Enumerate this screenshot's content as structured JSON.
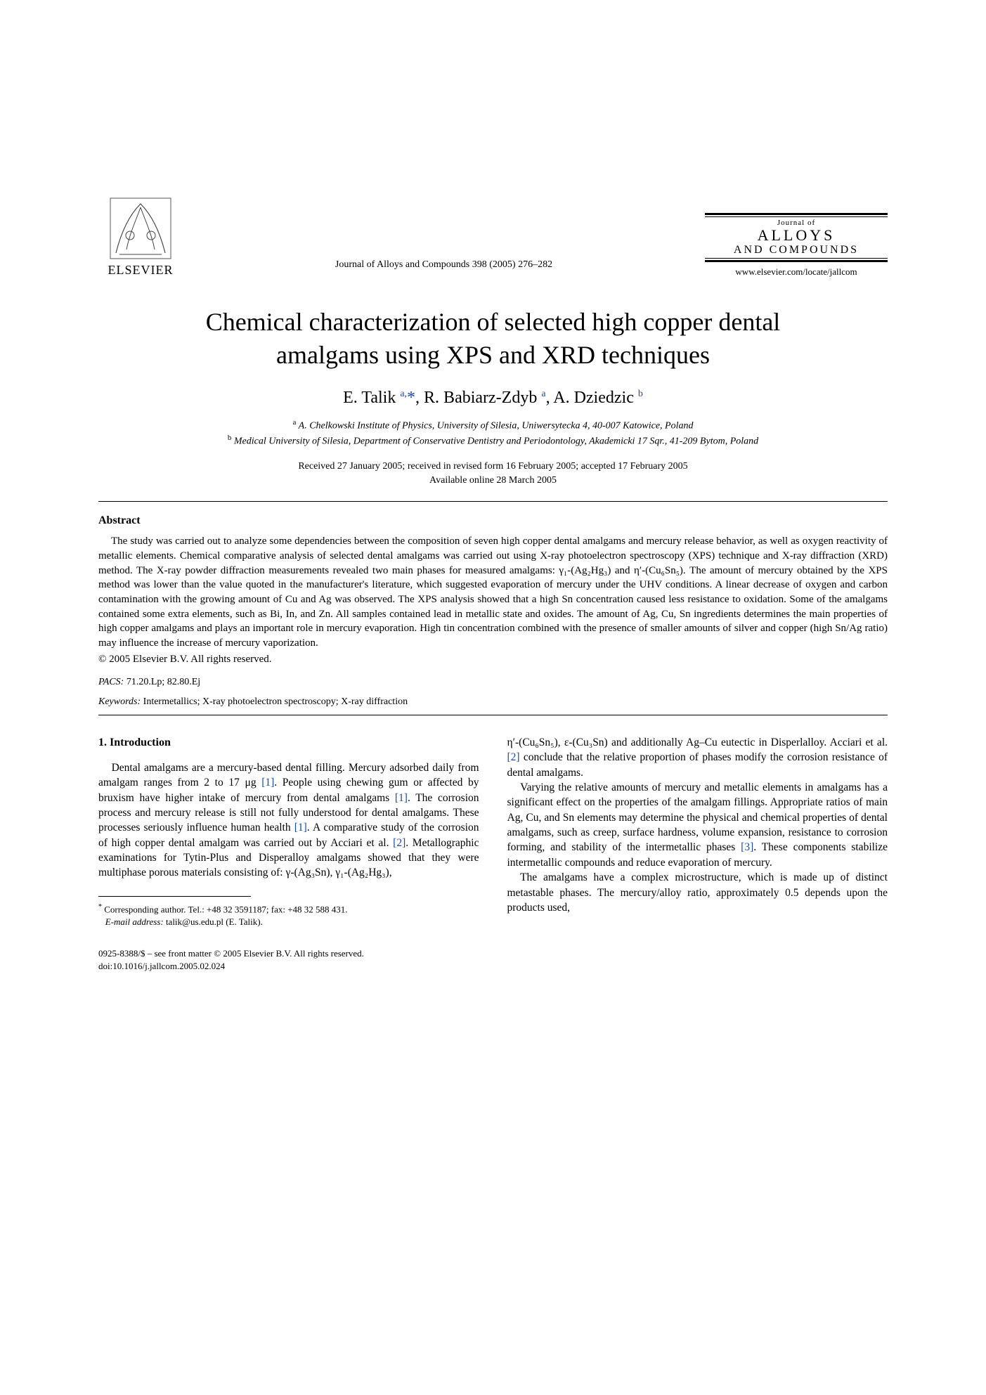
{
  "publisher": {
    "name": "ELSEVIER"
  },
  "journal_citation": "Journal of Alloys and Compounds 398 (2005) 276–282",
  "brand": {
    "caption": "Journal of",
    "main": "ALLOYS",
    "sub": "AND COMPOUNDS",
    "url": "www.elsevier.com/locate/jallcom"
  },
  "title": "Chemical characterization of selected high copper dental amalgams using XPS and XRD techniques",
  "authors_html": "E. Talik <sup>a,</sup><a href=\"#\">*</a>, R. Babiarz-Zdyb <sup>a</sup>, A. Dziedzic <sup>b</sup>",
  "affiliations": {
    "a": "A. Chelkowski Institute of Physics, University of Silesia, Uniwersytecka 4, 40-007 Katowice, Poland",
    "b": "Medical University of Silesia, Department of Conservative Dentistry and Periodontology, Akademicki 17 Sqr., 41-209 Bytom, Poland"
  },
  "dates": {
    "received": "Received 27 January 2005; received in revised form 16 February 2005; accepted 17 February 2005",
    "online": "Available online 28 March 2005"
  },
  "abstract": {
    "heading": "Abstract",
    "body": "The study was carried out to analyze some dependencies between the composition of seven high copper dental amalgams and mercury release behavior, as well as oxygen reactivity of metallic elements. Chemical comparative analysis of selected dental amalgams was carried out using X-ray photoelectron spectroscopy (XPS) technique and X-ray diffraction (XRD) method. The X-ray powder diffraction measurements revealed two main phases for measured amalgams: γ₁-(Ag₂Hg₃) and η′-(Cu₆Sn₅). The amount of mercury obtained by the XPS method was lower than the value quoted in the manufacturer's literature, which suggested evaporation of mercury under the UHV conditions. A linear decrease of oxygen and carbon contamination with the growing amount of Cu and Ag was observed. The XPS analysis showed that a high Sn concentration caused less resistance to oxidation. Some of the amalgams contained some extra elements, such as Bi, In, and Zn. All samples contained lead in metallic state and oxides. The amount of Ag, Cu, Sn ingredients determines the main properties of high copper amalgams and plays an important role in mercury evaporation. High tin concentration combined with the presence of smaller amounts of silver and copper (high Sn/Ag ratio) may influence the increase of mercury vaporization.",
    "copyright": "© 2005 Elsevier B.V. All rights reserved."
  },
  "pacs": {
    "label": "PACS:",
    "value": "71.20.Lp; 82.80.Ej"
  },
  "keywords": {
    "label": "Keywords:",
    "value": "Intermetallics; X-ray photoelectron spectroscopy; X-ray diffraction"
  },
  "section1": {
    "heading": "1.  Introduction",
    "left_html": "Dental amalgams are a mercury-based dental filling. Mercury adsorbed daily from amalgam ranges from 2 to 17 μg <a class=\"ref\" href=\"#\">[1]</a>. People using chewing gum or affected by bruxism have higher intake of mercury from dental amalgams <a class=\"ref\" href=\"#\">[1]</a>. The corrosion process and mercury release is still not fully understood for dental amalgams. These processes seriously influence human health <a class=\"ref\" href=\"#\">[1]</a>. A comparative study of the corrosion of high copper dental amalgam was carried out by Acciari et al. <a class=\"ref\" href=\"#\">[2]</a>. Metallographic examinations for Tytin-Plus and Disperalloy amalgams showed that they were multiphase porous materials consisting of: γ-(Ag₃Sn), γ₁-(Ag₂Hg₃),",
    "right_p1_html": "η′-(Cu₆Sn₅), ε-(Cu₃Sn) and additionally Ag–Cu eutectic in Disperlalloy. Acciari et al. <a class=\"ref\" href=\"#\">[2]</a> conclude that the relative proportion of phases modify the corrosion resistance of dental amalgams.",
    "right_p2_html": "Varying the relative amounts of mercury and metallic elements in amalgams has a significant effect on the properties of the amalgam fillings. Appropriate ratios of main Ag, Cu, and Sn elements may determine the physical and chemical properties of dental amalgams, such as creep, surface hardness, volume expansion, resistance to corrosion forming, and stability of the intermetallic phases <a class=\"ref\" href=\"#\">[3]</a>. These components stabilize intermetallic compounds and reduce evaporation of mercury.",
    "right_p3": "The amalgams have a complex microstructure, which is made up of distinct metastable phases. The mercury/alloy ratio, approximately 0.5 depends upon the products used,"
  },
  "footnote": {
    "line1": "Corresponding author. Tel.: +48 32 3591187; fax: +48 32 588 431.",
    "email_label": "E-mail address:",
    "email": "talik@us.edu.pl (E. Talik)."
  },
  "bottom": {
    "line1": "0925-8388/$ – see front matter © 2005 Elsevier B.V. All rights reserved.",
    "line2": "doi:10.1016/j.jallcom.2005.02.024"
  },
  "colors": {
    "link": "#1a4aa8",
    "text": "#000000",
    "background": "#ffffff"
  }
}
